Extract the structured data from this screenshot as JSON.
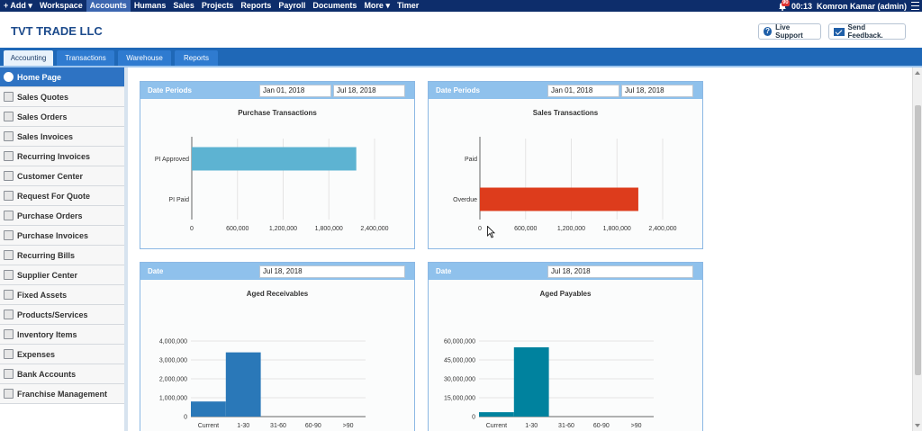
{
  "nav": {
    "items": [
      "+ Add ▾",
      "Workspace",
      "Accounts",
      "Humans",
      "Sales",
      "Projects",
      "Reports",
      "Payroll",
      "Documents",
      "More ▾",
      "Timer"
    ],
    "active": "Accounts",
    "notification_count": "90",
    "time": "00:13",
    "user": "Komron Kamar (admin)"
  },
  "header": {
    "company": "TVT TRADE LLC",
    "live_support": "Live Support",
    "send_feedback": "Send Feedback."
  },
  "tabs": [
    "Accounting",
    "Transactions",
    "Warehouse",
    "Reports"
  ],
  "sidebar": {
    "items": [
      "Home Page",
      "Sales Quotes",
      "Sales Orders",
      "Sales Invoices",
      "Recurring Invoices",
      "Customer Center",
      "Request For Quote",
      "Purchase Orders",
      "Purchase Invoices",
      "Recurring Bills",
      "Supplier Center",
      "Fixed Assets",
      "Products/Services",
      "Inventory Items",
      "Expenses",
      "Bank Accounts",
      "Franchise Management"
    ]
  },
  "panels": {
    "purchase": {
      "label": "Date Periods",
      "from": "Jan 01, 2018",
      "to": "Jul 18, 2018"
    },
    "sales": {
      "label": "Date Periods",
      "from": "Jan 01, 2018",
      "to": "Jul 18, 2018"
    },
    "receivables": {
      "label": "Date",
      "date": "Jul 18, 2018"
    },
    "payables": {
      "label": "Date",
      "date": "Jul 18, 2018"
    }
  },
  "colors": {
    "nav": "#0d2d6b",
    "tabbar": "#1f68b7",
    "panel_header": "#8fc1ec",
    "accent": "#2e73c3"
  },
  "chart_data": [
    {
      "type": "bar",
      "orientation": "horizontal",
      "title": "Purchase Transactions",
      "categories": [
        "PI Approved",
        "PI Paid"
      ],
      "values": [
        2160000,
        0
      ],
      "xlim": [
        0,
        2400000
      ],
      "ticks": [
        "0",
        "600,000",
        "1,200,000",
        "1,800,000",
        "2,400,000"
      ],
      "color": "#5db3d2"
    },
    {
      "type": "bar",
      "orientation": "horizontal",
      "title": "Sales Transactions",
      "categories": [
        "Paid",
        "Overdue"
      ],
      "values": [
        0,
        2080000
      ],
      "xlim": [
        0,
        2400000
      ],
      "ticks": [
        "0",
        "600,000",
        "1,200,000",
        "1,800,000",
        "2,400,000"
      ],
      "color": "#dd3c1c"
    },
    {
      "type": "bar",
      "title": "Aged Receivables",
      "categories": [
        "Current",
        "1-30",
        "31-60",
        "60-90",
        ">90"
      ],
      "values": [
        800000,
        3400000,
        0,
        0,
        0
      ],
      "ylim": [
        0,
        4000000
      ],
      "ticks": [
        "0",
        "1,000,000",
        "2,000,000",
        "3,000,000",
        "4,000,000"
      ],
      "color": "#2a78b8"
    },
    {
      "type": "bar",
      "title": "Aged Payables",
      "categories": [
        "Current",
        "1-30",
        "31-60",
        "60-90",
        ">90"
      ],
      "values": [
        3500000,
        55000000,
        0,
        0,
        0
      ],
      "ylim": [
        0,
        60000000
      ],
      "ticks": [
        "0",
        "15,000,000",
        "30,000,000",
        "45,000,000",
        "60,000,000"
      ],
      "color": "#00829e"
    }
  ]
}
